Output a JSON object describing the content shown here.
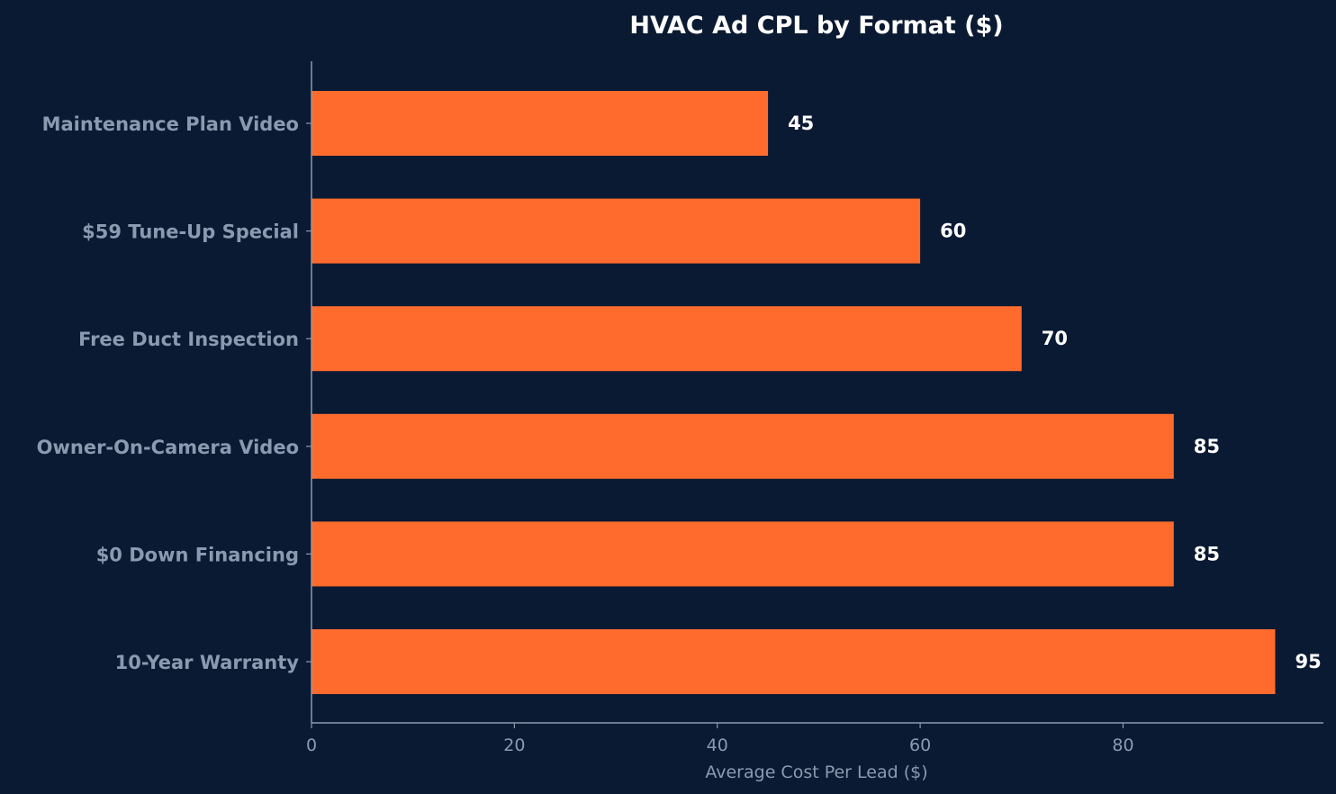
{
  "colors": {
    "background": "#0b1a33",
    "bar": "#ff6b2d",
    "axis": "#8a9bb0",
    "label": "#8a9bb0",
    "value_label": "#ffffff",
    "title": "#ffffff"
  },
  "chart_data": {
    "type": "bar",
    "orientation": "horizontal",
    "title": "HVAC Ad CPL by Format ($)",
    "xlabel": "Average Cost Per Lead ($)",
    "ylabel": "",
    "categories": [
      "Maintenance Plan Video",
      "$59 Tune-Up Special",
      "Free Duct Inspection",
      "Owner-On-Camera Video",
      "$0 Down Financing",
      "10-Year Warranty"
    ],
    "values": [
      45,
      60,
      70,
      85,
      85,
      95
    ],
    "xlim": [
      0,
      99.75
    ],
    "xticks": [
      0,
      20,
      40,
      60,
      80
    ],
    "grid": false,
    "legend": "none"
  }
}
